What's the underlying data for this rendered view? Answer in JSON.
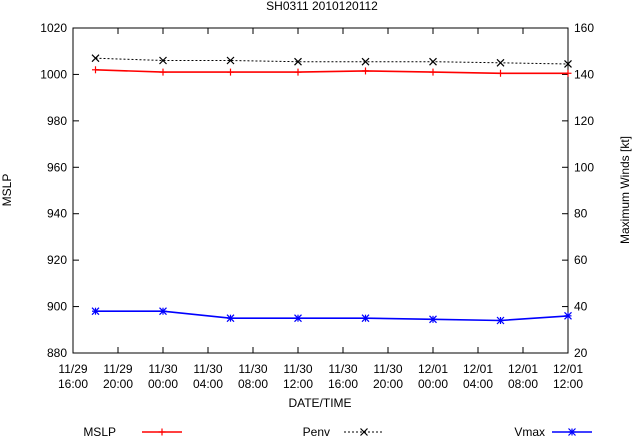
{
  "chart_data": {
    "type": "line",
    "title": "SH0311 2010120112",
    "xlabel": "DATE/TIME",
    "ylabel": "MSLP",
    "y2label": "Maximum Winds [kt]",
    "grid": false,
    "legend_placement": "bottom",
    "x_tick_labels": [
      [
        "11/29",
        "16:00"
      ],
      [
        "11/29",
        "20:00"
      ],
      [
        "11/30",
        "00:00"
      ],
      [
        "11/30",
        "04:00"
      ],
      [
        "11/30",
        "08:00"
      ],
      [
        "11/30",
        "12:00"
      ],
      [
        "11/30",
        "16:00"
      ],
      [
        "11/30",
        "20:00"
      ],
      [
        "12/01",
        "00:00"
      ],
      [
        "12/01",
        "04:00"
      ],
      [
        "12/01",
        "08:00"
      ],
      [
        "12/01",
        "12:00"
      ]
    ],
    "x_range_hours": [
      0,
      44
    ],
    "ylim": [
      880,
      1020
    ],
    "y_ticks": [
      880,
      900,
      920,
      940,
      960,
      980,
      1000,
      1020
    ],
    "y2lim": [
      20,
      160
    ],
    "y2_ticks": [
      20,
      40,
      60,
      80,
      100,
      120,
      140,
      160
    ],
    "x_hours": [
      2,
      8,
      14,
      20,
      26,
      32,
      38,
      44
    ],
    "series": [
      {
        "name": "MSLP",
        "axis": "y",
        "color": "#ff0000",
        "marker": "plus",
        "values": [
          1002,
          1001,
          1001,
          1001,
          1001.5,
          1001,
          1000.5,
          1000.5
        ]
      },
      {
        "name": "Penv",
        "axis": "y",
        "color": "#000000",
        "marker": "x",
        "dash": true,
        "values": [
          1007,
          1006,
          1006,
          1005.5,
          1005.5,
          1005.5,
          1005,
          1004.5
        ]
      },
      {
        "name": "Vmax",
        "axis": "y2",
        "color": "#0000ff",
        "marker": "star",
        "values": [
          38,
          38,
          35,
          35,
          35,
          34.5,
          34,
          36
        ]
      }
    ]
  }
}
